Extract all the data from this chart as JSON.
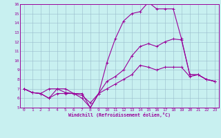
{
  "xlabel": "Windchill (Refroidissement éolien,°C)",
  "xlim": [
    -0.5,
    23.5
  ],
  "ylim": [
    5,
    16
  ],
  "xticks": [
    0,
    1,
    2,
    3,
    4,
    5,
    6,
    7,
    8,
    9,
    10,
    11,
    12,
    13,
    14,
    15,
    16,
    17,
    18,
    19,
    20,
    21,
    22,
    23
  ],
  "yticks": [
    5,
    6,
    7,
    8,
    9,
    10,
    11,
    12,
    13,
    14,
    15,
    16
  ],
  "bg_color": "#c8f0f0",
  "grid_color": "#99bbcc",
  "line_color": "#990099",
  "line1_x": [
    0,
    1,
    2,
    3,
    4,
    5,
    6,
    7,
    8,
    9,
    10,
    11,
    12,
    13,
    14,
    15,
    16,
    17,
    18,
    19,
    20,
    21,
    22,
    23
  ],
  "line1_y": [
    7.0,
    6.6,
    6.5,
    7.0,
    7.0,
    6.6,
    6.5,
    6.5,
    5.0,
    6.5,
    7.0,
    7.5,
    8.0,
    8.5,
    9.5,
    9.3,
    9.0,
    9.3,
    9.3,
    9.3,
    8.3,
    8.5,
    8.0,
    7.8
  ],
  "line2_x": [
    0,
    1,
    2,
    3,
    4,
    5,
    6,
    7,
    8,
    9,
    10,
    11,
    12,
    13,
    14,
    15,
    16,
    17,
    18,
    19,
    20,
    21,
    22,
    23
  ],
  "line2_y": [
    7.0,
    6.6,
    6.5,
    6.0,
    6.5,
    6.5,
    6.5,
    6.3,
    5.5,
    6.5,
    7.8,
    8.3,
    9.0,
    10.5,
    11.5,
    11.8,
    11.5,
    12.0,
    12.3,
    12.2,
    8.5,
    8.5,
    8.0,
    7.8
  ],
  "line3_x": [
    0,
    1,
    2,
    3,
    4,
    5,
    6,
    7,
    8,
    9,
    10,
    11,
    12,
    13,
    14,
    15,
    16,
    17,
    18,
    19,
    20,
    21,
    22,
    23
  ],
  "line3_y": [
    7.0,
    6.6,
    6.5,
    6.0,
    7.0,
    7.0,
    6.5,
    6.0,
    5.0,
    6.5,
    9.8,
    12.3,
    14.2,
    15.0,
    15.2,
    16.2,
    15.5,
    15.5,
    15.5,
    12.3,
    8.5,
    8.5,
    8.0,
    7.8
  ]
}
